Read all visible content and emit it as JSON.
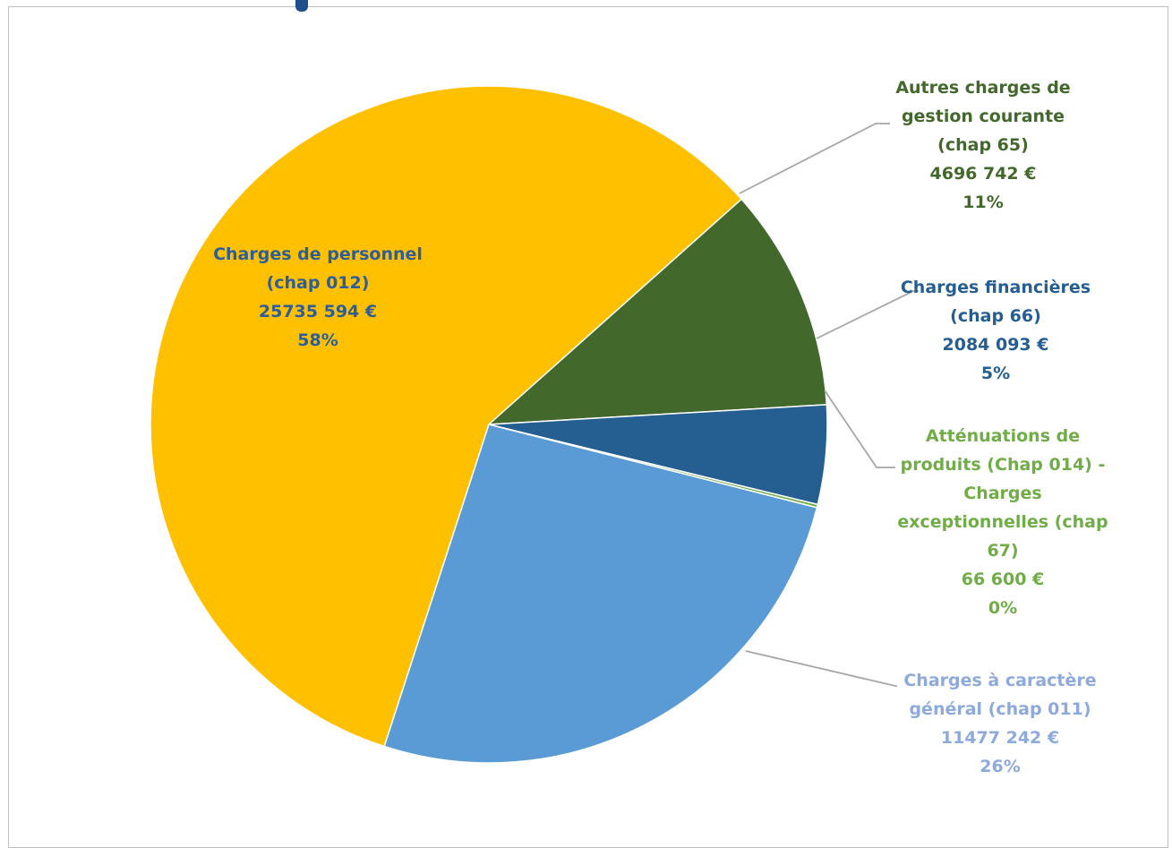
{
  "chart_data": {
    "type": "pie",
    "start_angle_deg": 198,
    "slices": [
      {
        "name": "Charges de personnel (chap 012)",
        "value": 25735594,
        "label_lines": [
          "Charges de personnel",
          "(chap 012)",
          "25735 594 €",
          "58%"
        ],
        "color": "#FFC000",
        "label_color": "#2E5E99"
      },
      {
        "name": "Autres charges de gestion courante (chap 65)",
        "value": 4696742,
        "label_lines": [
          "Autres charges de",
          "gestion courante",
          "(chap 65)",
          "4696 742 €",
          "11%"
        ],
        "color": "#43682B",
        "label_color": "#43682B"
      },
      {
        "name": "Charges financières (chap 66)",
        "value": 2084093,
        "label_lines": [
          "Charges financières",
          "(chap 66)",
          "2084 093 €",
          "5%"
        ],
        "color": "#255E91",
        "label_color": "#255E91"
      },
      {
        "name": "Atténuations de produits (Chap 014) - Charges exceptionnelles (chap 67)",
        "value": 66600,
        "label_lines": [
          "Atténuations de",
          "produits (Chap 014) -",
          "Charges",
          "exceptionnelles (chap",
          "67)",
          "66 600 €",
          "0%"
        ],
        "color": "#70AD47",
        "label_color": "#70AD47"
      },
      {
        "name": "Charges à caractère général (chap 011)",
        "value": 11477242,
        "label_lines": [
          "Charges à caractère",
          "général (chap 011)",
          "11477 242 €",
          "26%"
        ],
        "color": "#5B9BD5",
        "label_color": "#8EA9DB"
      }
    ]
  }
}
